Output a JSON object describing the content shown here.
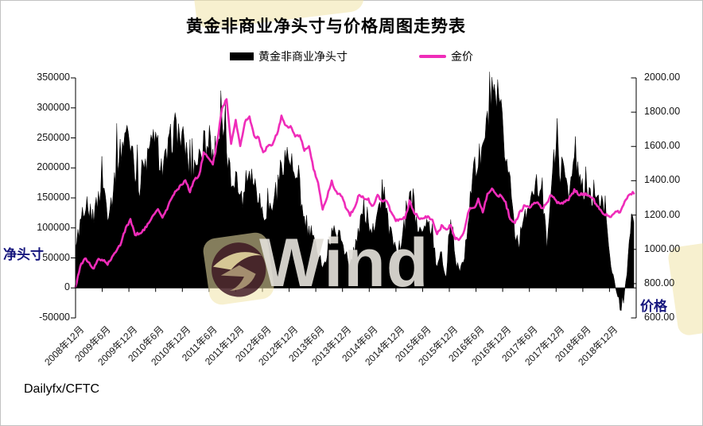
{
  "title": "黄金非商业净头寸与价格周图走势表",
  "legend": {
    "items": [
      {
        "label": "黄金非商业净头寸",
        "swatch": "bar",
        "color": "#000000"
      },
      {
        "label": "金价",
        "swatch": "line",
        "color": "#ef2cb9"
      }
    ]
  },
  "source": "Dailyfx/CFTC",
  "watermark": {
    "text": "Wind"
  },
  "colors": {
    "bars": "#000000",
    "price_line": "#ef2cb9",
    "axis_names": "#15157d",
    "axis": "#000000"
  },
  "chart_data": {
    "type": "combo: bar(area) + line, dual y-axis",
    "x_start": "2008-12",
    "x_end": "2019-02",
    "x_freq": "monthly (weekly data approximated by monthly samples)",
    "x_tick_labels": [
      "2008年12月",
      "2009年6月",
      "2009年12月",
      "2010年6月",
      "2010年12月",
      "2011年6月",
      "2011年12月",
      "2012年6月",
      "2012年12月",
      "2013年6月",
      "2013年12月",
      "2014年6月",
      "2014年12月",
      "2015年6月",
      "2015年12月",
      "2016年6月",
      "2016年12月",
      "2017年6月",
      "2017年12月",
      "2018年6月",
      "2018年12月"
    ],
    "y_axis_left": {
      "name": "净头寸",
      "min": -50000,
      "max": 350000,
      "step": 50000,
      "tick_labels": [
        "350000",
        "300000",
        "250000",
        "200000",
        "150000",
        "100000",
        "50000",
        "0",
        "-50000"
      ]
    },
    "y_axis_right": {
      "name": "价格",
      "min": 600,
      "max": 2000,
      "step": 200,
      "tick_labels": [
        "2000.00",
        "1800.00",
        "1600.00",
        "1400.00",
        "1200.00",
        "1000.00",
        "800.00",
        "600.00"
      ]
    },
    "legend_position": "top-center",
    "grid": "off",
    "series": [
      {
        "name": "黄金非商业净头寸",
        "axis": "left",
        "style": "black filled bars",
        "color": "#000000",
        "values": [
          60000,
          88000,
          112000,
          128000,
          118000,
          152000,
          178000,
          126000,
          152000,
          210000,
          232000,
          262000,
          242000,
          198000,
          168000,
          198000,
          222000,
          242000,
          232000,
          196000,
          218000,
          252000,
          268000,
          248000,
          236000,
          192000,
          208000,
          218000,
          242000,
          232000,
          216000,
          252000,
          262000,
          228000,
          176000,
          192000,
          142000,
          162000,
          202000,
          178000,
          158000,
          122000,
          132000,
          136000,
          158000,
          208000,
          222000,
          212000,
          178000,
          152000,
          98000,
          92000,
          78000,
          62000,
          38000,
          48000,
          92000,
          96000,
          84000,
          58000,
          28000,
          62000,
          102000,
          132000,
          108000,
          95000,
          125000,
          152000,
          120000,
          80000,
          64000,
          70000,
          102000,
          150000,
          128000,
          88000,
          104000,
          118000,
          84000,
          32000,
          52000,
          20000,
          112000,
          42000,
          26000,
          54000,
          132000,
          182000,
          210000,
          232000,
          272000,
          315000,
          292000,
          282000,
          220000,
          178000,
          95000,
          75000,
          132000,
          118000,
          162000,
          172000,
          144000,
          74000,
          182000,
          232000,
          198000,
          192000,
          160000,
          215000,
          185000,
          145000,
          165000,
          155000,
          140000,
          150000,
          110000,
          40000,
          0,
          -38000,
          -15000,
          70000,
          120000
        ]
      },
      {
        "name": "金价",
        "axis": "right",
        "style": "magenta line",
        "color": "#ef2cb9",
        "values": [
          775,
          900,
          948,
          920,
          885,
          945,
          935,
          915,
          950,
          1000,
          1040,
          1130,
          1170,
          1085,
          1095,
          1115,
          1150,
          1205,
          1230,
          1185,
          1235,
          1300,
          1345,
          1370,
          1405,
          1335,
          1410,
          1430,
          1560,
          1535,
          1500,
          1630,
          1825,
          1875,
          1620,
          1750,
          1600,
          1740,
          1780,
          1660,
          1650,
          1560,
          1600,
          1615,
          1670,
          1775,
          1720,
          1715,
          1660,
          1660,
          1580,
          1595,
          1470,
          1390,
          1230,
          1310,
          1395,
          1330,
          1320,
          1250,
          1200,
          1245,
          1325,
          1295,
          1290,
          1250,
          1315,
          1285,
          1285,
          1210,
          1170,
          1175,
          1185,
          1280,
          1215,
          1185,
          1180,
          1190,
          1170,
          1095,
          1135,
          1115,
          1140,
          1065,
          1060,
          1115,
          1235,
          1235,
          1290,
          1215,
          1320,
          1355,
          1310,
          1315,
          1270,
          1175,
          1150,
          1210,
          1250,
          1245,
          1265,
          1270,
          1240,
          1270,
          1320,
          1280,
          1270,
          1275,
          1300,
          1345,
          1320,
          1325,
          1315,
          1300,
          1250,
          1220,
          1200,
          1190,
          1215,
          1220,
          1280,
          1320,
          1330
        ]
      }
    ]
  }
}
